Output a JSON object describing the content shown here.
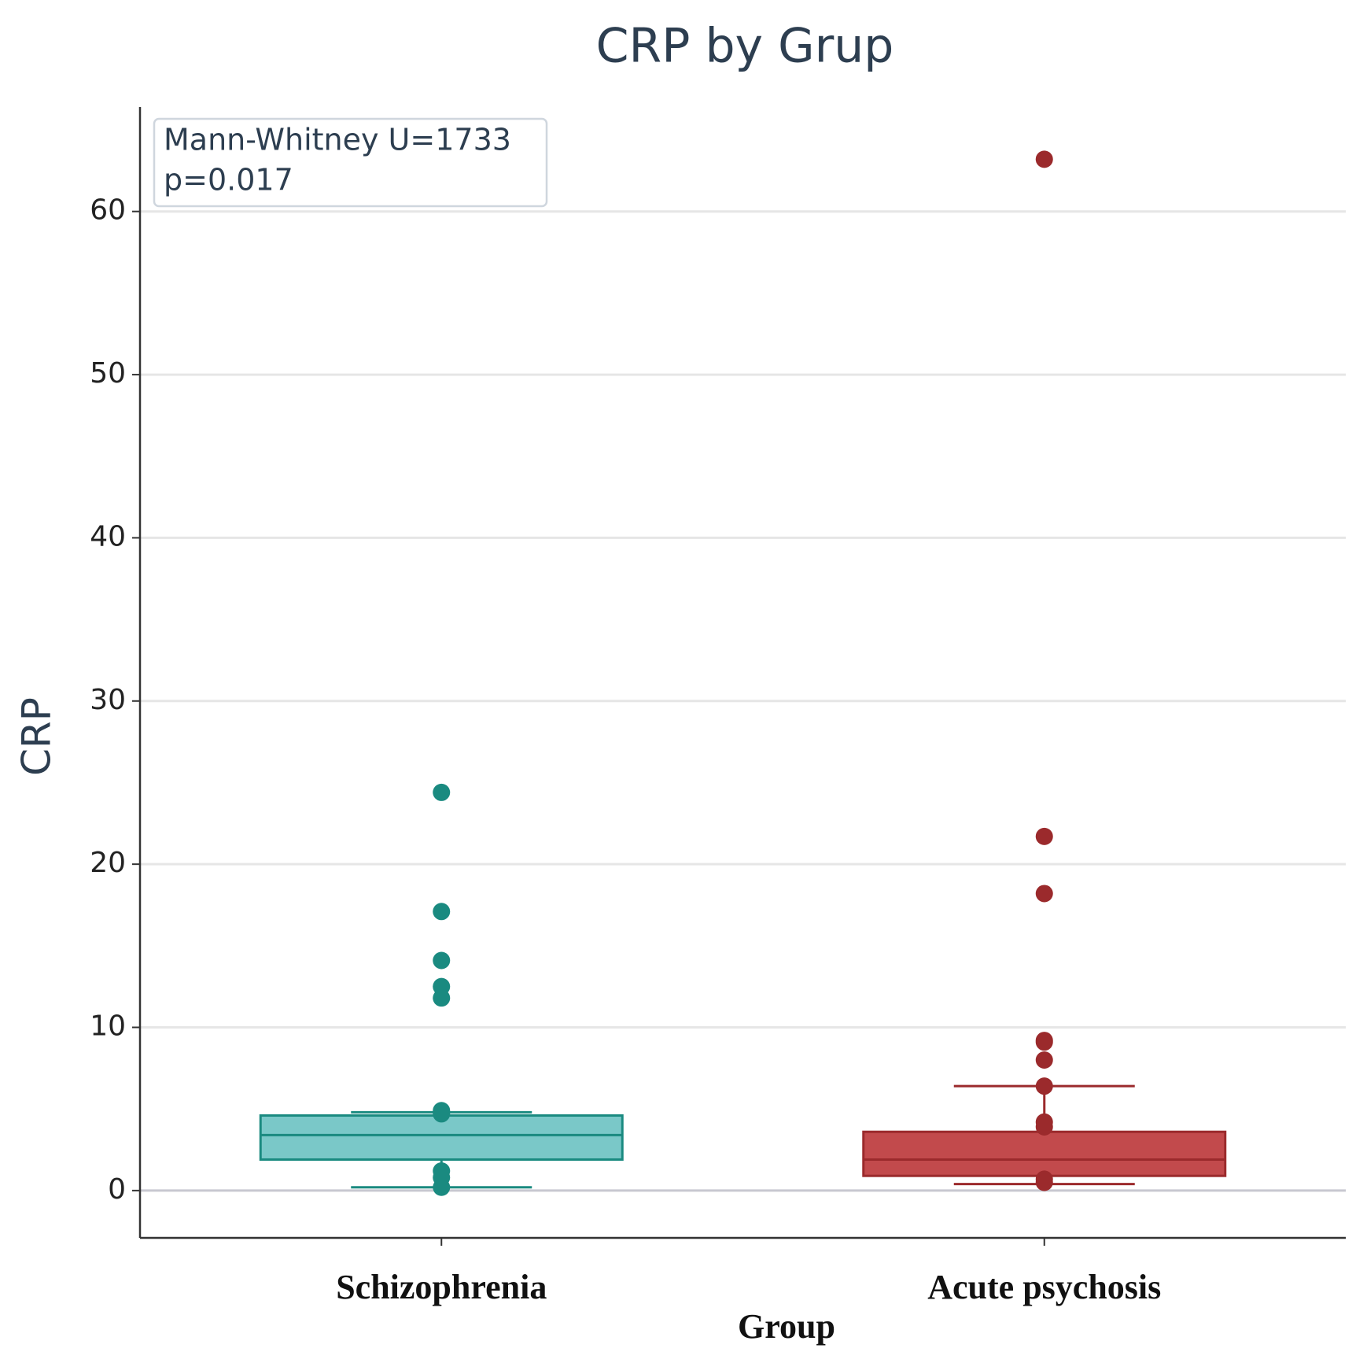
{
  "chart_data": {
    "type": "box",
    "title": "CRP by Grup",
    "xlabel": "Group",
    "ylabel": "CRP",
    "annotation": [
      "Mann-Whitney U=1733",
      "p=0.017"
    ],
    "categories": [
      "Schizophrenia",
      "Acute psychosis"
    ],
    "boxes": [
      {
        "color": "#7ac8c8",
        "edge_color": "#1a8a80",
        "whislo": 0.2,
        "q1": 1.9,
        "med": 3.4,
        "q3": 4.6,
        "whishi": 4.8,
        "points": [
          24.4,
          17.1,
          14.1,
          12.5,
          11.8,
          4.9,
          4.7,
          1.2,
          0.8,
          0.2
        ]
      },
      {
        "color": "#c24a4c",
        "edge_color": "#9b2a2c",
        "whislo": 0.4,
        "q1": 0.9,
        "med": 1.9,
        "q3": 3.6,
        "whishi": 6.4,
        "points": [
          63.2,
          21.7,
          18.2,
          9.2,
          9.1,
          8.0,
          6.4,
          4.2,
          3.9,
          0.7,
          0.5
        ]
      }
    ],
    "ylim": [
      -2.9,
      66.4
    ],
    "yticks": [
      0,
      10,
      20,
      30,
      40,
      50,
      60
    ],
    "grid": true
  }
}
